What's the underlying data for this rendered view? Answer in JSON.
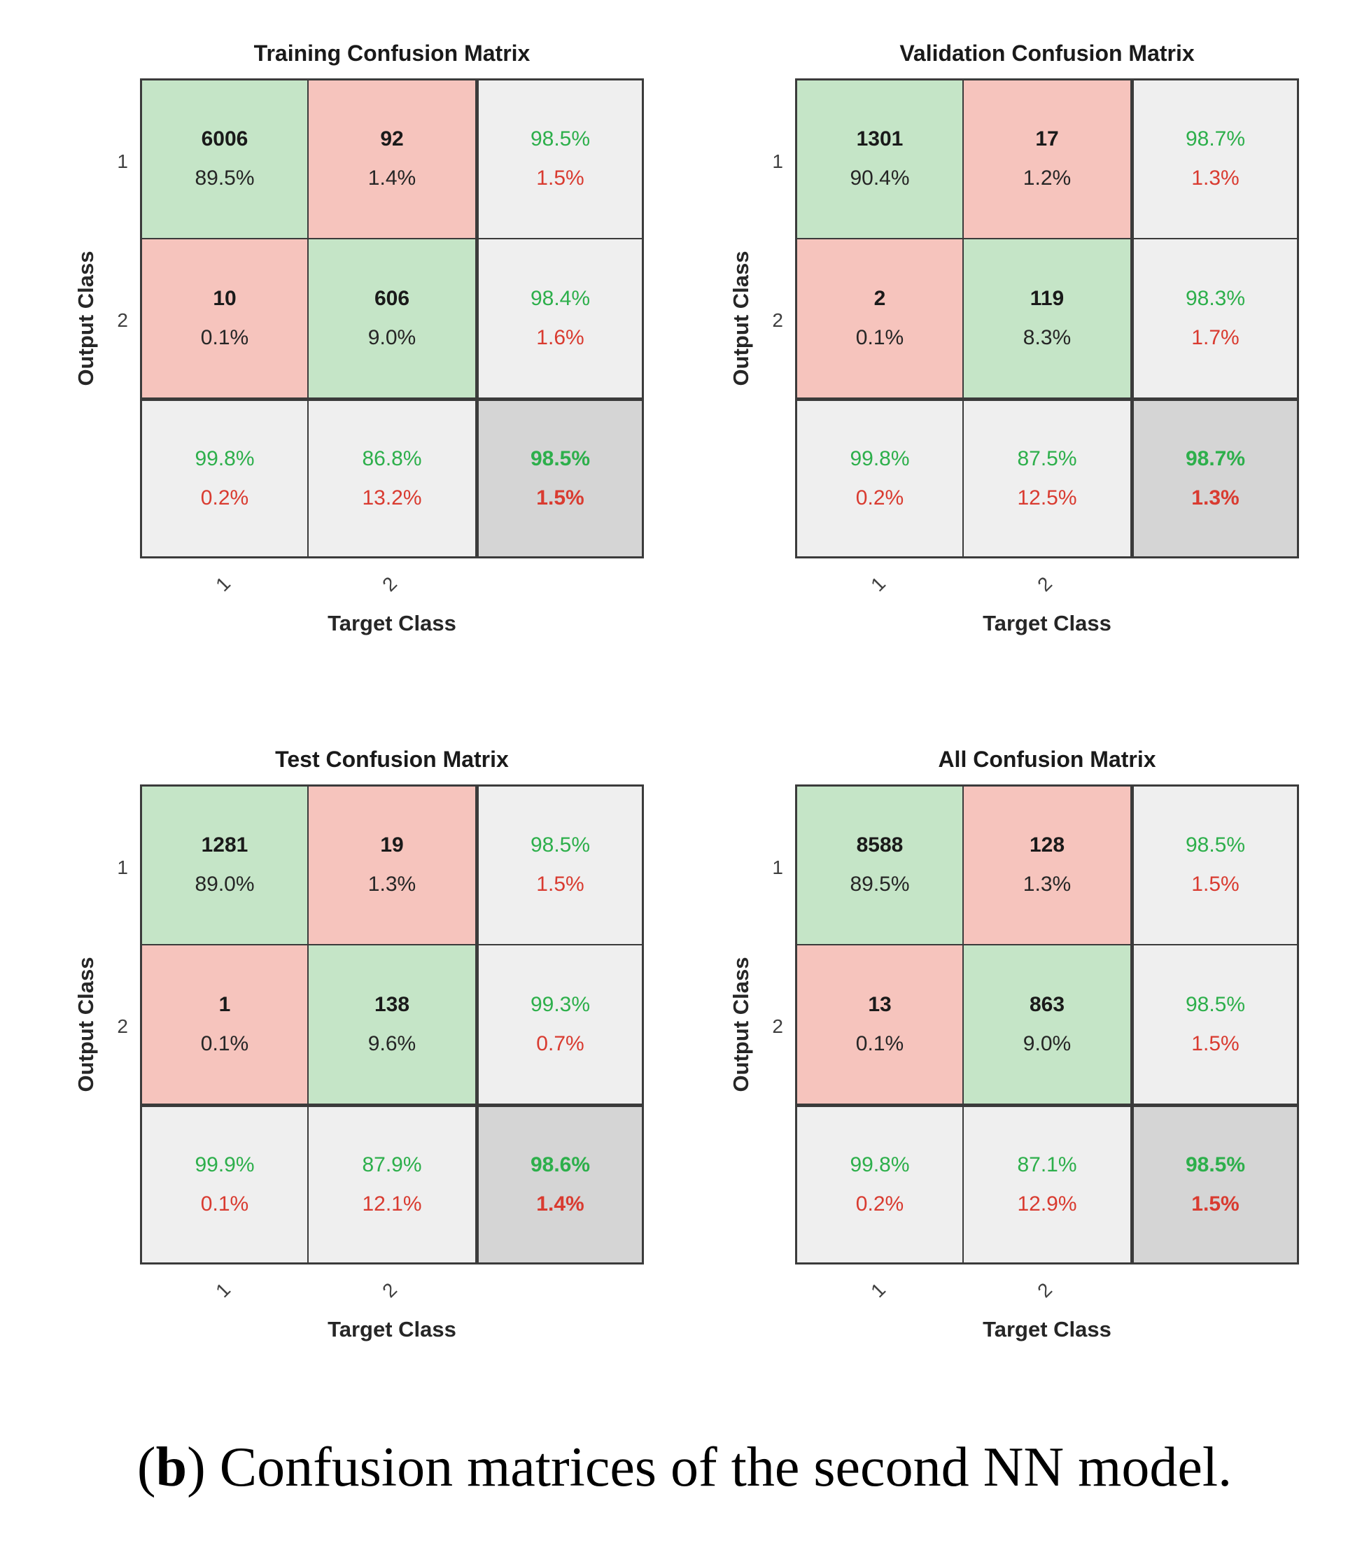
{
  "caption": {
    "prefix": "(",
    "bold_label": "b",
    "rest": ") Confusion matrices of the second NN model."
  },
  "colors": {
    "correct_cell_green": "#c5e5c7",
    "error_cell_red": "#f6c4bd",
    "summary_cell_gray": "#efefef",
    "overall_cell_gray": "#d5d5d5",
    "grid_line": "#3b3b3b",
    "good_pct_text_green": "#2daf4b",
    "bad_pct_text_red": "#d93b30"
  },
  "chart_data": [
    {
      "type": "heatmap",
      "title": "Training Confusion Matrix",
      "xlabel": "Target Class",
      "ylabel": "Output Class",
      "row_ticks": [
        "1",
        "2"
      ],
      "col_ticks": [
        "1",
        "2"
      ],
      "cells": {
        "r1c1": {
          "count": "6006",
          "pct": "89.5%"
        },
        "r1c2": {
          "count": "92",
          "pct": "1.4%"
        },
        "r1c3": {
          "green": "98.5%",
          "red": "1.5%"
        },
        "r2c1": {
          "count": "10",
          "pct": "0.1%"
        },
        "r2c2": {
          "count": "606",
          "pct": "9.0%"
        },
        "r2c3": {
          "green": "98.4%",
          "red": "1.6%"
        },
        "r3c1": {
          "green": "99.8%",
          "red": "0.2%"
        },
        "r3c2": {
          "green": "86.8%",
          "red": "13.2%"
        },
        "r3c3": {
          "green": "98.5%",
          "red": "1.5%"
        }
      }
    },
    {
      "type": "heatmap",
      "title": "Validation Confusion Matrix",
      "xlabel": "Target Class",
      "ylabel": "Output Class",
      "row_ticks": [
        "1",
        "2"
      ],
      "col_ticks": [
        "1",
        "2"
      ],
      "cells": {
        "r1c1": {
          "count": "1301",
          "pct": "90.4%"
        },
        "r1c2": {
          "count": "17",
          "pct": "1.2%"
        },
        "r1c3": {
          "green": "98.7%",
          "red": "1.3%"
        },
        "r2c1": {
          "count": "2",
          "pct": "0.1%"
        },
        "r2c2": {
          "count": "119",
          "pct": "8.3%"
        },
        "r2c3": {
          "green": "98.3%",
          "red": "1.7%"
        },
        "r3c1": {
          "green": "99.8%",
          "red": "0.2%"
        },
        "r3c2": {
          "green": "87.5%",
          "red": "12.5%"
        },
        "r3c3": {
          "green": "98.7%",
          "red": "1.3%"
        }
      }
    },
    {
      "type": "heatmap",
      "title": "Test Confusion Matrix",
      "xlabel": "Target Class",
      "ylabel": "Output Class",
      "row_ticks": [
        "1",
        "2"
      ],
      "col_ticks": [
        "1",
        "2"
      ],
      "cells": {
        "r1c1": {
          "count": "1281",
          "pct": "89.0%"
        },
        "r1c2": {
          "count": "19",
          "pct": "1.3%"
        },
        "r1c3": {
          "green": "98.5%",
          "red": "1.5%"
        },
        "r2c1": {
          "count": "1",
          "pct": "0.1%"
        },
        "r2c2": {
          "count": "138",
          "pct": "9.6%"
        },
        "r2c3": {
          "green": "99.3%",
          "red": "0.7%"
        },
        "r3c1": {
          "green": "99.9%",
          "red": "0.1%"
        },
        "r3c2": {
          "green": "87.9%",
          "red": "12.1%"
        },
        "r3c3": {
          "green": "98.6%",
          "red": "1.4%"
        }
      }
    },
    {
      "type": "heatmap",
      "title": "All Confusion Matrix",
      "xlabel": "Target Class",
      "ylabel": "Output Class",
      "row_ticks": [
        "1",
        "2"
      ],
      "col_ticks": [
        "1",
        "2"
      ],
      "cells": {
        "r1c1": {
          "count": "8588",
          "pct": "89.5%"
        },
        "r1c2": {
          "count": "128",
          "pct": "1.3%"
        },
        "r1c3": {
          "green": "98.5%",
          "red": "1.5%"
        },
        "r2c1": {
          "count": "13",
          "pct": "0.1%"
        },
        "r2c2": {
          "count": "863",
          "pct": "9.0%"
        },
        "r2c3": {
          "green": "98.5%",
          "red": "1.5%"
        },
        "r3c1": {
          "green": "99.8%",
          "red": "0.2%"
        },
        "r3c2": {
          "green": "87.1%",
          "red": "12.9%"
        },
        "r3c3": {
          "green": "98.5%",
          "red": "1.5%"
        }
      }
    }
  ]
}
